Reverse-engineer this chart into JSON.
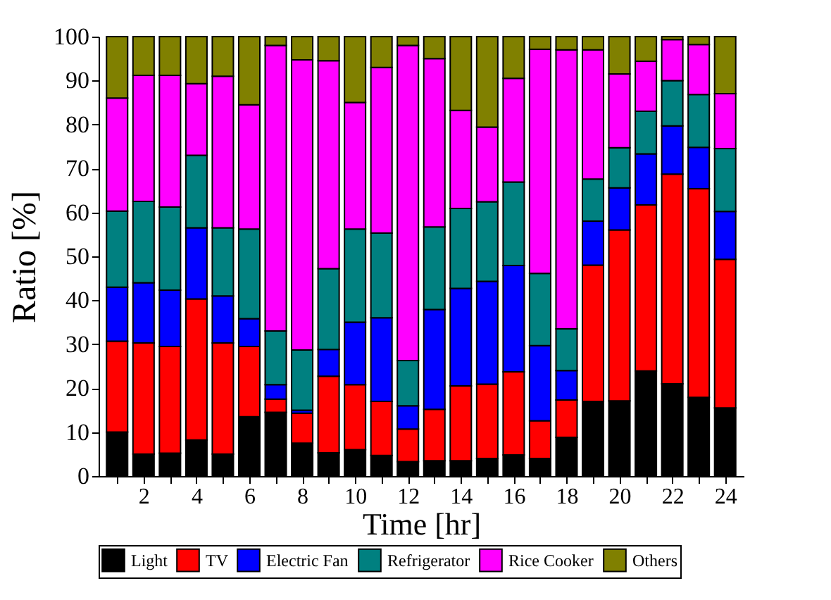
{
  "chart_data": {
    "type": "bar",
    "stacked": true,
    "xlabel": "Time [hr]",
    "ylabel": "Ratio [%]",
    "x": [
      1,
      2,
      3,
      4,
      5,
      6,
      7,
      8,
      9,
      10,
      11,
      12,
      13,
      14,
      15,
      16,
      17,
      18,
      19,
      20,
      21,
      22,
      23,
      24
    ],
    "xlim": [
      0.3,
      24.7
    ],
    "xticks": [
      {
        "value": 1,
        "label": null
      },
      2,
      {
        "value": 3,
        "label": null
      },
      4,
      {
        "value": 5,
        "label": null
      },
      6,
      {
        "value": 7,
        "label": null
      },
      8,
      {
        "value": 9,
        "label": null
      },
      10,
      {
        "value": 11,
        "label": null
      },
      12,
      {
        "value": 13,
        "label": null
      },
      14,
      {
        "value": 15,
        "label": null
      },
      16,
      {
        "value": 17,
        "label": null
      },
      18,
      {
        "value": 19,
        "label": null
      },
      20,
      {
        "value": 21,
        "label": null
      },
      22,
      {
        "value": 23,
        "label": null
      },
      24
    ],
    "ylim": [
      0,
      100
    ],
    "yticks": [
      0,
      10,
      20,
      30,
      40,
      50,
      60,
      70,
      80,
      90,
      100
    ],
    "grid": false,
    "legend": "bottom",
    "series": [
      {
        "name": "Light",
        "color": "#000000",
        "values": [
          10,
          5,
          5.2,
          8.2,
          5,
          13.5,
          14.5,
          7.5,
          5.3,
          6,
          4.7,
          3.3,
          3.5,
          3.5,
          4,
          4.8,
          4,
          8.8,
          17,
          17.1,
          23.9,
          21,
          17.9,
          15.5
        ]
      },
      {
        "name": "TV",
        "color": "#ff0000",
        "values": [
          20.7,
          25.3,
          24.3,
          32.1,
          25.3,
          16,
          3,
          6.8,
          17.4,
          14.8,
          12.3,
          7.4,
          11.7,
          17,
          16.9,
          18.9,
          8.6,
          8.5,
          31,
          38.9,
          37.8,
          47.7,
          47.5,
          33.8
        ]
      },
      {
        "name": "Electric Fan",
        "color": "#0000ff",
        "values": [
          12.3,
          13.7,
          12.8,
          16.2,
          10.7,
          6.3,
          3.3,
          0.7,
          6.1,
          14.2,
          19,
          5.3,
          22.7,
          22.2,
          23.4,
          24.2,
          17.1,
          6.7,
          10,
          9.6,
          11.6,
          11,
          9.4,
          10.9
        ]
      },
      {
        "name": "Refrigerator",
        "color": "#008080",
        "values": [
          17.3,
          18.5,
          18.9,
          16.5,
          15.5,
          20.4,
          12.2,
          13.7,
          18.4,
          21.2,
          19.3,
          10.3,
          18.8,
          18.2,
          18.1,
          19,
          16.4,
          9.5,
          9.6,
          9.1,
          9.7,
          10.3,
          12,
          14.3
        ]
      },
      {
        "name": "Rice Cooker",
        "color": "#ff00ff",
        "values": [
          25.7,
          28.7,
          30,
          16.3,
          34.5,
          28.3,
          65,
          66,
          47.3,
          28.8,
          37.7,
          71.7,
          38.3,
          22.3,
          17,
          23.6,
          51,
          63.5,
          29.4,
          16.8,
          11.4,
          9.3,
          11.4,
          12.5
        ]
      },
      {
        "name": "Others",
        "color": "#808000",
        "values": [
          14,
          8.8,
          8.8,
          10.7,
          9,
          15.5,
          2,
          5.3,
          5.5,
          15,
          7,
          2,
          5,
          16.8,
          20.6,
          9.5,
          2.9,
          3,
          3,
          8.5,
          5.6,
          0.7,
          1.8,
          13
        ]
      }
    ]
  }
}
